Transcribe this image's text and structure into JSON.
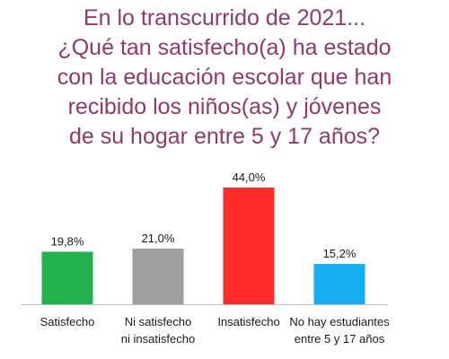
{
  "chart_data": {
    "type": "bar",
    "title_lines": [
      "En lo transcurrido de 2021...",
      "¿Qué tan satisfecho(a) ha estado",
      "con la educación escolar que han",
      "recibido los niños(as) y jóvenes",
      "de su hogar entre 5 y 17 años?"
    ],
    "categories": [
      [
        "Satisfecho"
      ],
      [
        "Ni satisfecho",
        "ni insatisfecho"
      ],
      [
        "Insatisfecho"
      ],
      [
        "No hay estudiantes",
        "entre 5 y 17 años"
      ]
    ],
    "values": [
      19.8,
      21.0,
      44.0,
      15.2
    ],
    "value_labels": [
      "19,8%",
      "21,0%",
      "44,0%",
      "15,2%"
    ],
    "colors": [
      "#22b14c",
      "#a0a0a0",
      "#ff2a2a",
      "#17aef0"
    ],
    "ylim": [
      0,
      44
    ],
    "grid": false,
    "legend": "none",
    "title_color": "#8e3a6c",
    "axis_color": "#bfbfbf"
  }
}
